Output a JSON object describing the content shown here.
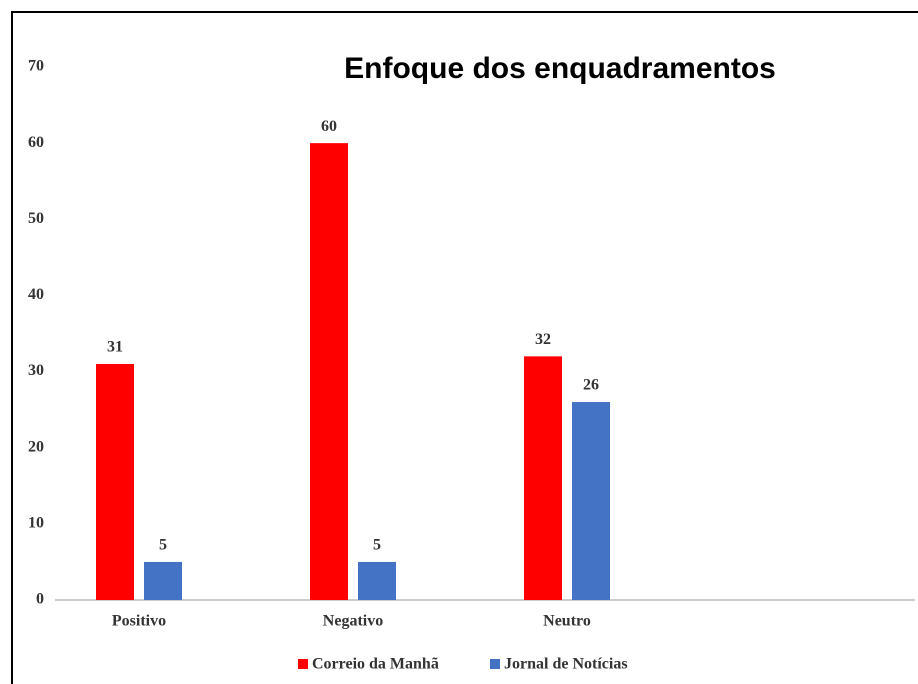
{
  "chart_data": {
    "type": "bar",
    "title": "Enfoque dos enquadramentos",
    "categories": [
      "Positivo",
      "Negativo",
      "Neutro"
    ],
    "series": [
      {
        "name": "Correio da Manhã",
        "color": "#ff0000",
        "values": [
          31,
          60,
          32
        ]
      },
      {
        "name": "Jornal de Notícias",
        "color": "#4472c4",
        "values": [
          5,
          5,
          26
        ]
      }
    ],
    "ylim": [
      0,
      70
    ],
    "yticks": [
      0,
      10,
      20,
      30,
      40,
      50,
      60,
      70
    ],
    "grid": false
  }
}
